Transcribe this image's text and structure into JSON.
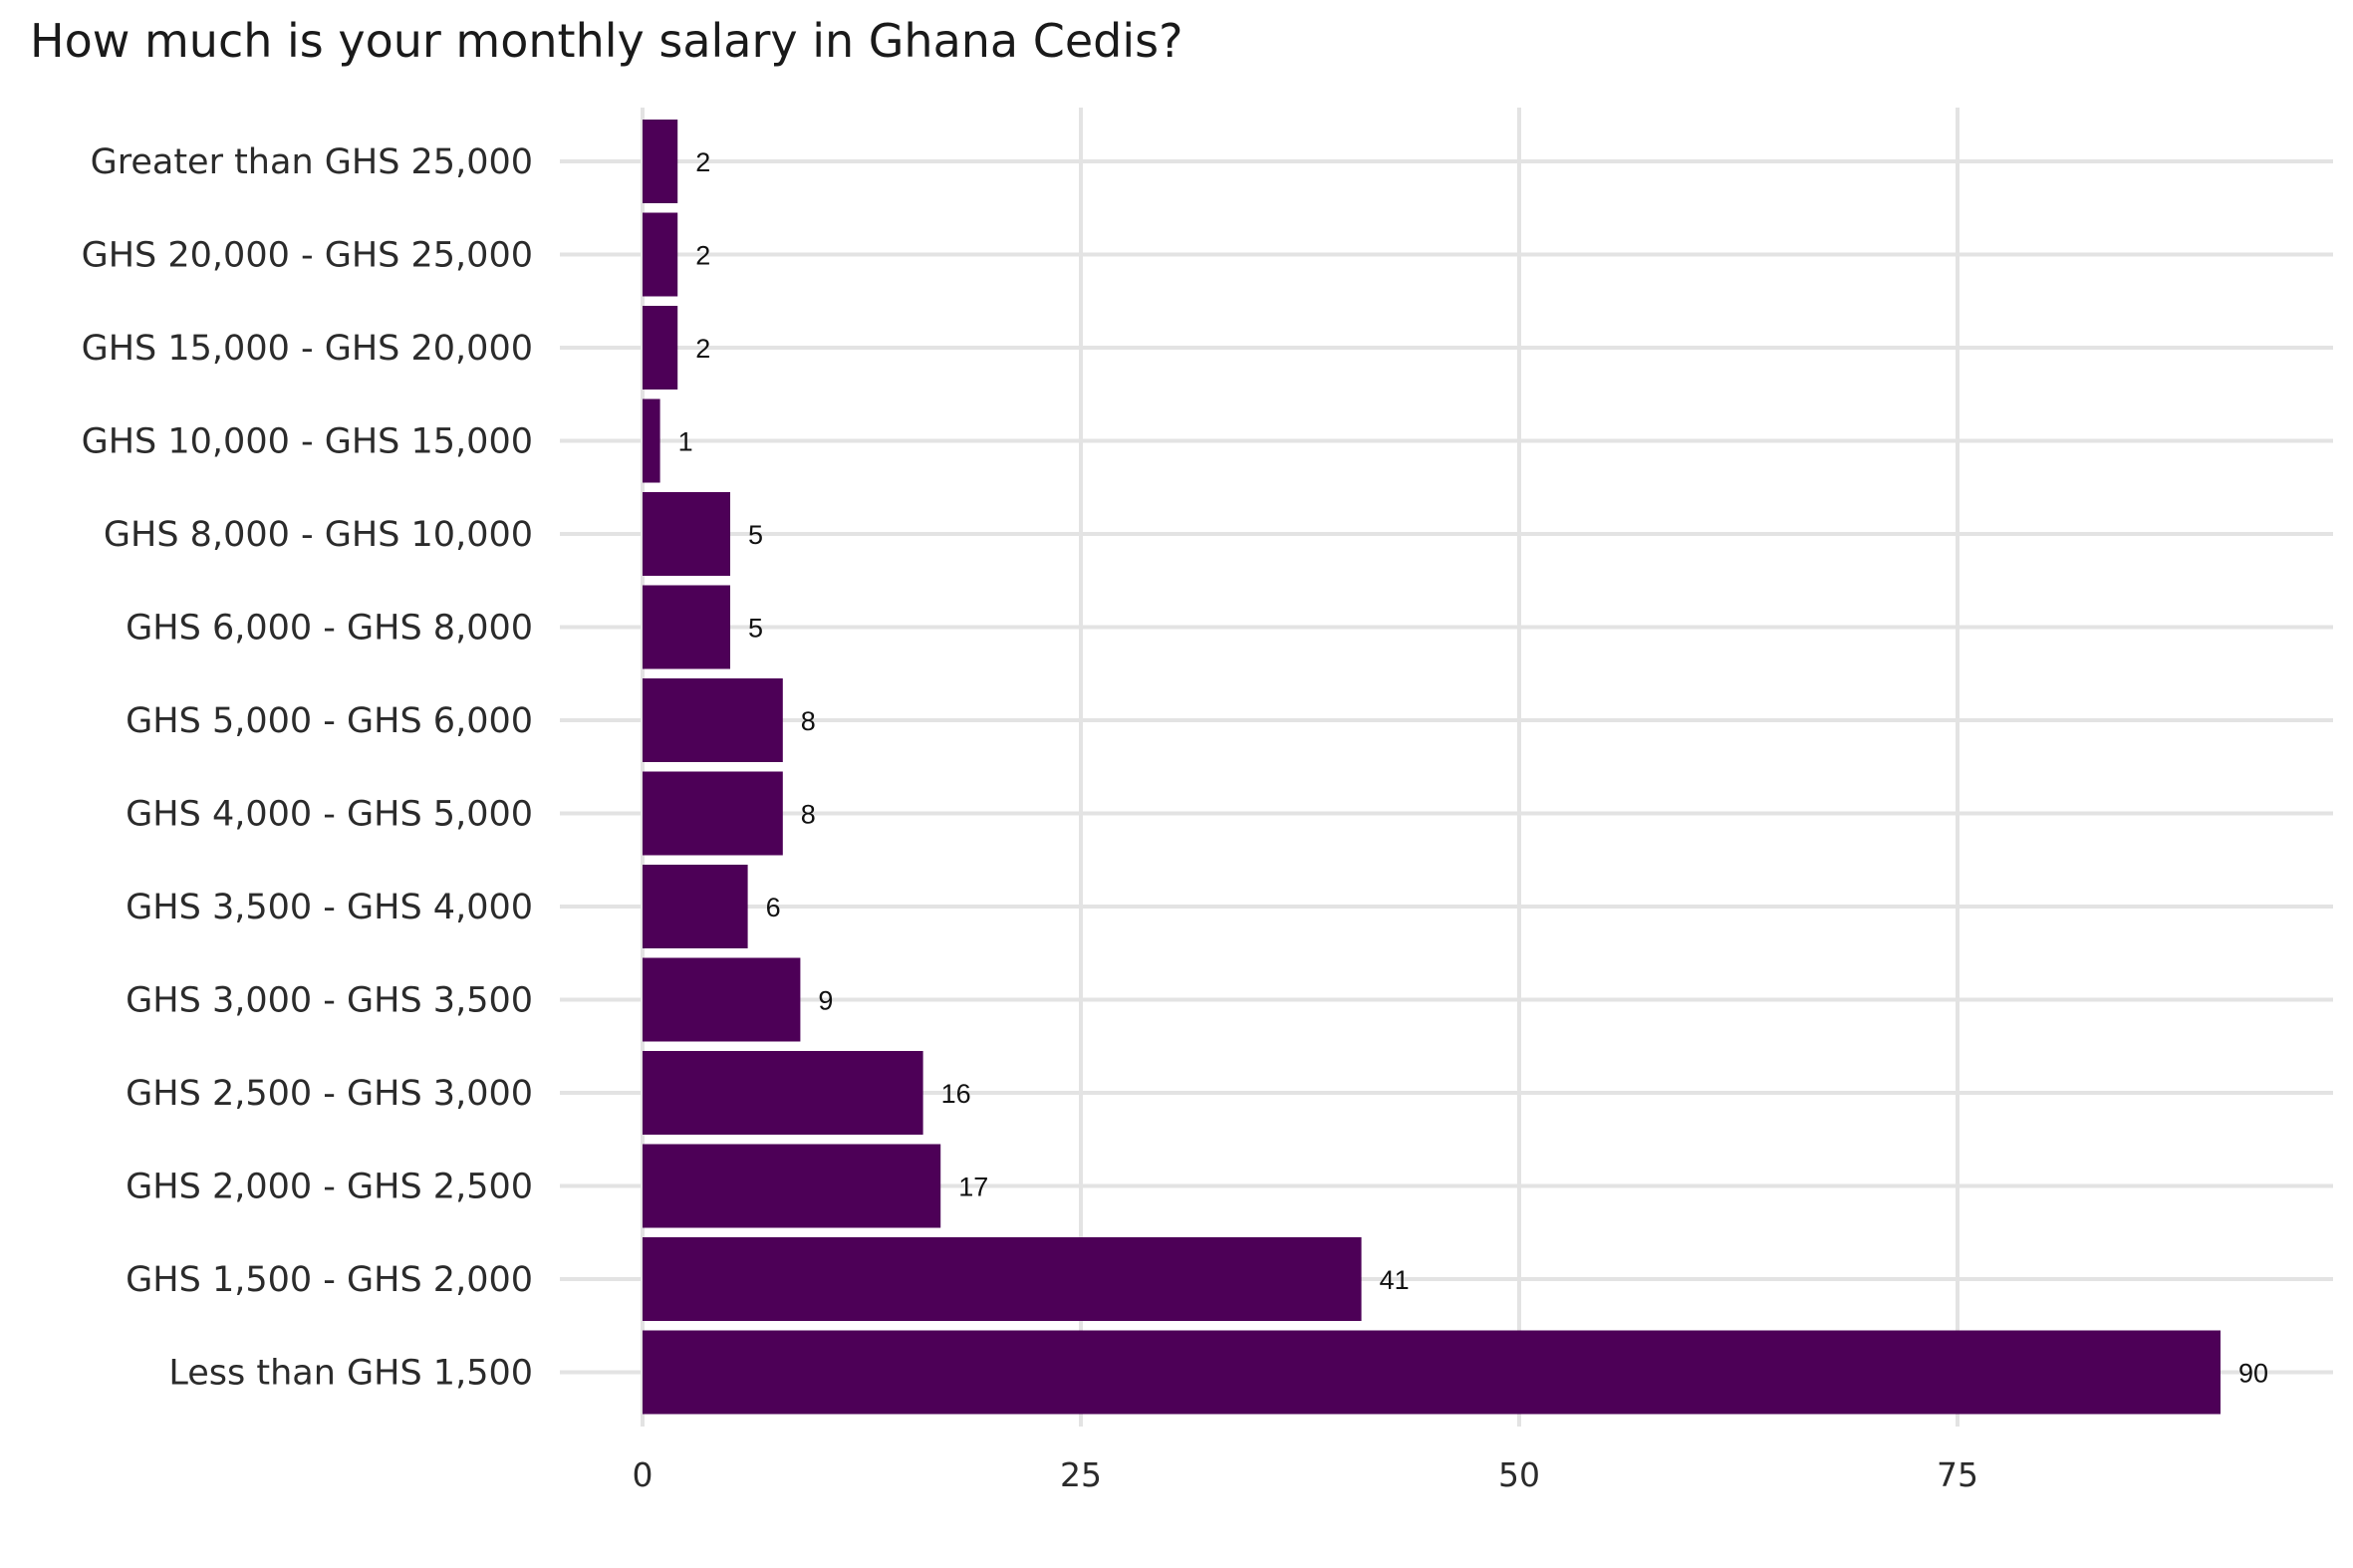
{
  "chart_data": {
    "type": "bar",
    "orientation": "horizontal",
    "title": "How much is your monthly salary in Ghana Cedis?",
    "xlabel": "",
    "ylabel": "",
    "categories": [
      "Greater than GHS 25,000",
      "GHS 20,000 - GHS 25,000",
      "GHS 15,000 - GHS 20,000",
      "GHS 10,000 - GHS 15,000",
      "GHS 8,000 - GHS 10,000",
      "GHS 6,000 - GHS 8,000",
      "GHS 5,000 - GHS 6,000",
      "GHS 4,000 - GHS 5,000",
      "GHS 3,500 - GHS 4,000",
      "GHS 3,000 - GHS 3,500",
      "GHS 2,500 - GHS 3,000",
      "GHS 2,000 - GHS 2,500",
      "GHS 1,500 - GHS 2,000",
      "Less than GHS 1,500"
    ],
    "values": [
      2,
      2,
      2,
      1,
      5,
      5,
      8,
      8,
      6,
      9,
      16,
      17,
      41,
      90
    ],
    "xlim": [
      0,
      96
    ],
    "xticks": [
      0,
      25,
      50,
      75
    ],
    "grid": true,
    "colors": {
      "bar": "#4d0057",
      "grid": "#e3e3e3"
    }
  }
}
